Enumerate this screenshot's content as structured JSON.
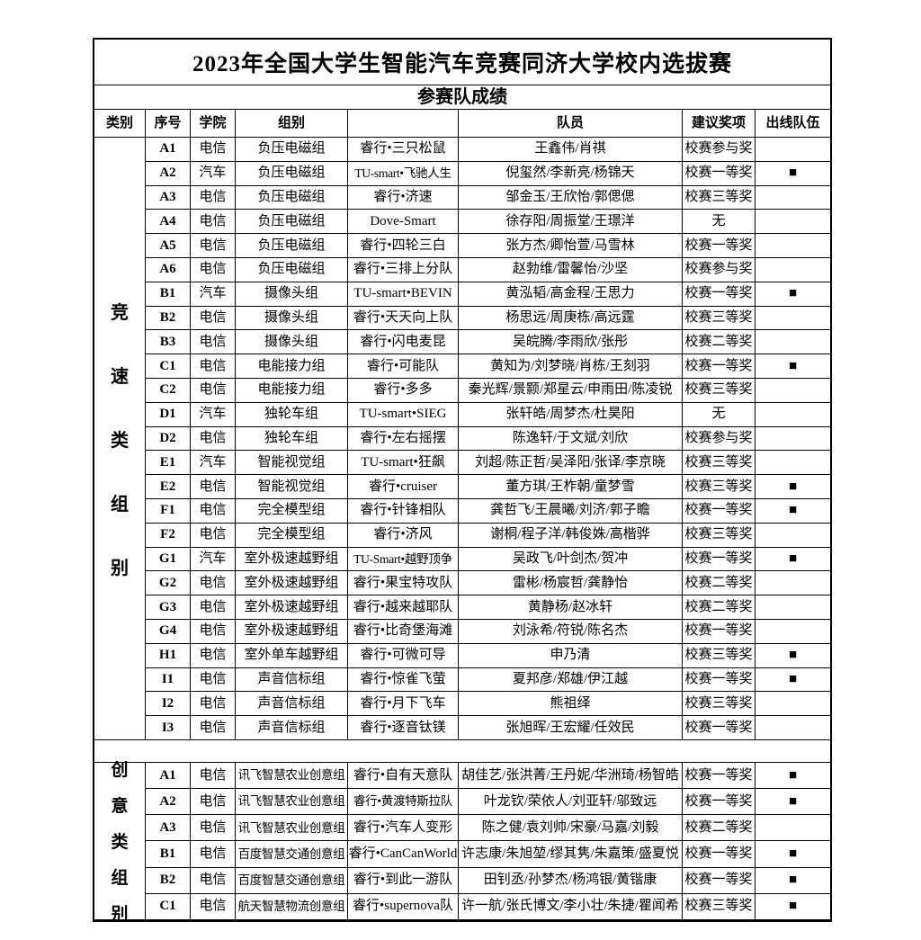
{
  "title": "2023年全国大学生智能汽车竞赛同济大学校内选拔赛",
  "subtitle": "参赛队成绩",
  "columns": [
    "类别",
    "序号",
    "学院",
    "组别",
    "",
    "队员",
    "建议奖项",
    "出线队伍"
  ],
  "qualified_marker": "■",
  "sections": [
    {
      "category_label": "竞速类组别",
      "rows": [
        {
          "no": "A1",
          "college": "电信",
          "group": "负压电磁组",
          "team": "睿行•三只松鼠",
          "members": "王鑫伟/肖祺",
          "award": "校赛参与奖",
          "qualified": false
        },
        {
          "no": "A2",
          "college": "汽车",
          "group": "负压电磁组",
          "team": "TU-smart•飞驰人生",
          "members": "倪玺然/李新亮/杨锦天",
          "award": "校赛一等奖",
          "qualified": true
        },
        {
          "no": "A3",
          "college": "电信",
          "group": "负压电磁组",
          "team": "睿行•济速",
          "members": "邹金玉/王欣怡/郭偲偲",
          "award": "校赛三等奖",
          "qualified": false
        },
        {
          "no": "A4",
          "college": "电信",
          "group": "负压电磁组",
          "team": "Dove-Smart",
          "members": "徐存阳/周振堂/王璟洋",
          "award": "无",
          "qualified": false
        },
        {
          "no": "A5",
          "college": "电信",
          "group": "负压电磁组",
          "team": "睿行•四轮三白",
          "members": "张方杰/卿怡萱/马雪林",
          "award": "校赛一等奖",
          "qualified": false
        },
        {
          "no": "A6",
          "college": "电信",
          "group": "负压电磁组",
          "team": "睿行•三排上分队",
          "members": "赵勃维/雷馨怡/沙坚",
          "award": "校赛参与奖",
          "qualified": false
        },
        {
          "no": "B1",
          "college": "汽车",
          "group": "摄像头组",
          "team": "TU-smart•BEVIN",
          "members": "黄泓韬/高金程/王思力",
          "award": "校赛一等奖",
          "qualified": true
        },
        {
          "no": "B2",
          "college": "电信",
          "group": "摄像头组",
          "team": "睿行•天天向上队",
          "members": "杨思远/周庚栋/高远霆",
          "award": "校赛三等奖",
          "qualified": false
        },
        {
          "no": "B3",
          "college": "电信",
          "group": "摄像头组",
          "team": "睿行•闪电麦昆",
          "members": "吴皖腾/李雨欣/张彤",
          "award": "校赛二等奖",
          "qualified": false
        },
        {
          "no": "C1",
          "college": "电信",
          "group": "电能接力组",
          "team": "睿行•可能队",
          "members": "黄知为/刘梦晓/肖栋/王刻羽",
          "award": "校赛一等奖",
          "qualified": true
        },
        {
          "no": "C2",
          "college": "电信",
          "group": "电能接力组",
          "team": "睿行•多多",
          "members": "秦光辉/景颢/郑星云/申雨田/陈凌锐",
          "award": "校赛三等奖",
          "qualified": false
        },
        {
          "no": "D1",
          "college": "汽车",
          "group": "独轮车组",
          "team": "TU-smart•SIEG",
          "members": "张轩皓/周梦杰/杜昊阳",
          "award": "无",
          "qualified": false
        },
        {
          "no": "D2",
          "college": "电信",
          "group": "独轮车组",
          "team": "睿行•左右摇摆",
          "members": "陈逸轩/于文斌/刘欣",
          "award": "校赛参与奖",
          "qualified": false
        },
        {
          "no": "E1",
          "college": "汽车",
          "group": "智能视觉组",
          "team": "TU-smart•狂飙",
          "members": "刘超/陈正哲/吴泽阳/张译/李京晓",
          "award": "校赛三等奖",
          "qualified": false
        },
        {
          "no": "E2",
          "college": "电信",
          "group": "智能视觉组",
          "team": "睿行•cruiser",
          "members": "董方琪/王柞朝/童梦雪",
          "award": "校赛三等奖",
          "qualified": true
        },
        {
          "no": "F1",
          "college": "电信",
          "group": "完全模型组",
          "team": "睿行•针锋相队",
          "members": "龚哲飞/王晨曦/刘济/郭子瞻",
          "award": "校赛一等奖",
          "qualified": true
        },
        {
          "no": "F2",
          "college": "电信",
          "group": "完全模型组",
          "team": "睿行•济风",
          "members": "谢桐/程子洋/韩俊姝/高楷骅",
          "award": "校赛三等奖",
          "qualified": false
        },
        {
          "no": "G1",
          "college": "汽车",
          "group": "室外极速越野组",
          "team": "TU-Smart•越野顶争",
          "members": "吴政飞/叶剑杰/贺冲",
          "award": "校赛一等奖",
          "qualified": true
        },
        {
          "no": "G2",
          "college": "电信",
          "group": "室外极速越野组",
          "team": "睿行•果宝特攻队",
          "members": "雷彬/杨宸哲/龚静怡",
          "award": "校赛二等奖",
          "qualified": false
        },
        {
          "no": "G3",
          "college": "电信",
          "group": "室外极速越野组",
          "team": "睿行•越来越耶队",
          "members": "黄静杨/赵冰轩",
          "award": "校赛二等奖",
          "qualified": false
        },
        {
          "no": "G4",
          "college": "电信",
          "group": "室外极速越野组",
          "team": "睿行•比奇堡海滩",
          "members": "刘泳希/符锐/陈名杰",
          "award": "校赛一等奖",
          "qualified": false
        },
        {
          "no": "H1",
          "college": "电信",
          "group": "室外单车越野组",
          "team": "睿行•可微可导",
          "members": "申乃清",
          "award": "校赛三等奖",
          "qualified": true
        },
        {
          "no": "I1",
          "college": "电信",
          "group": "声音信标组",
          "team": "睿行•惊雀飞萤",
          "members": "夏邦彦/郑雄/伊江越",
          "award": "校赛一等奖",
          "qualified": true
        },
        {
          "no": "I2",
          "college": "电信",
          "group": "声音信标组",
          "team": "睿行•月下飞车",
          "members": "熊祖绎",
          "award": "校赛三等奖",
          "qualified": false
        },
        {
          "no": "I3",
          "college": "电信",
          "group": "声音信标组",
          "team": "睿行•逐音钛镁",
          "members": "张旭晖/王宏耀/任效民",
          "award": "校赛一等奖",
          "qualified": false
        }
      ]
    },
    {
      "category_label": "创意类组别",
      "rows": [
        {
          "no": "A1",
          "college": "电信",
          "group": "讯飞智慧农业创意组",
          "team": "睿行•自有天意队",
          "members": "胡佳艺/张洪菁/王丹妮/华洲琦/杨智皓",
          "award": "校赛一等奖",
          "qualified": true
        },
        {
          "no": "A2",
          "college": "电信",
          "group": "讯飞智慧农业创意组",
          "team": "睿行•黄渡特斯拉队",
          "members": "叶龙钦/荣依人/刘亚轩/邬致远",
          "award": "校赛一等奖",
          "qualified": true
        },
        {
          "no": "A3",
          "college": "电信",
          "group": "讯飞智慧农业创意组",
          "team": "睿行•汽车人变形",
          "members": "陈之健/袁刘帅/宋豪/马嘉/刘毅",
          "award": "校赛二等奖",
          "qualified": false
        },
        {
          "no": "B1",
          "college": "电信",
          "group": "百度智慧交通创意组",
          "team": "睿行•CanCanWorld",
          "members": "许志康/朱旭堃/缪其隽/朱嘉策/盛夏悦",
          "award": "校赛一等奖",
          "qualified": true
        },
        {
          "no": "B2",
          "college": "电信",
          "group": "百度智慧交通创意组",
          "team": "睿行•到此一游队",
          "members": "田钊丞/孙梦杰/杨鸿银/黄锴康",
          "award": "校赛一等奖",
          "qualified": true
        },
        {
          "no": "C1",
          "college": "电信",
          "group": "航天智慧物流创意组",
          "team": "睿行•supernova队",
          "members": "许一航/张氏博文/李小壮/朱捷/瞿闻希",
          "award": "校赛三等奖",
          "qualified": true
        }
      ]
    }
  ]
}
